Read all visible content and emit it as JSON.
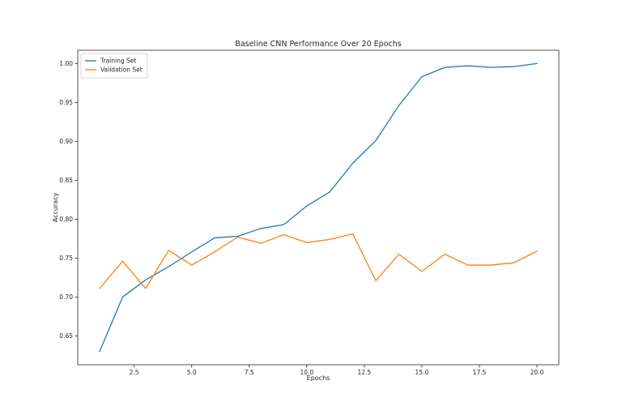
{
  "chart_data": {
    "type": "line",
    "title": "Baseline CNN Performance Over 20 Epochs",
    "xlabel": "Epochs",
    "ylabel": "Accuracy",
    "xlim": [
      0.05,
      20.95
    ],
    "ylim": [
      0.613,
      1.017
    ],
    "xticks": [
      2.5,
      5.0,
      7.5,
      10.0,
      12.5,
      15.0,
      17.5,
      20.0
    ],
    "xtick_labels": [
      "2.5",
      "5.0",
      "7.5",
      "10.0",
      "12.5",
      "15.0",
      "17.5",
      "20.0"
    ],
    "yticks": [
      0.65,
      0.7,
      0.75,
      0.8,
      0.85,
      0.9,
      0.95,
      1.0
    ],
    "ytick_labels": [
      "0.65",
      "0.70",
      "0.75",
      "0.80",
      "0.85",
      "0.90",
      "0.95",
      "1.00"
    ],
    "grid": false,
    "legend_position": "top-left",
    "x": [
      1,
      2,
      3,
      4,
      5,
      6,
      7,
      8,
      9,
      10,
      11,
      12,
      13,
      14,
      15,
      16,
      17,
      18,
      19,
      20
    ],
    "series": [
      {
        "name": "Training Set",
        "color": "#1f77b4",
        "values": [
          0.63,
          0.7,
          0.722,
          0.739,
          0.758,
          0.776,
          0.778,
          0.788,
          0.793,
          0.817,
          0.835,
          0.872,
          0.901,
          0.946,
          0.983,
          0.995,
          0.997,
          0.995,
          0.996,
          1.0
        ]
      },
      {
        "name": "Validation Set",
        "color": "#ff7f0e",
        "values": [
          0.711,
          0.746,
          0.711,
          0.76,
          0.741,
          0.758,
          0.777,
          0.769,
          0.78,
          0.77,
          0.774,
          0.781,
          0.721,
          0.755,
          0.733,
          0.755,
          0.741,
          0.741,
          0.744,
          0.759
        ]
      }
    ]
  }
}
